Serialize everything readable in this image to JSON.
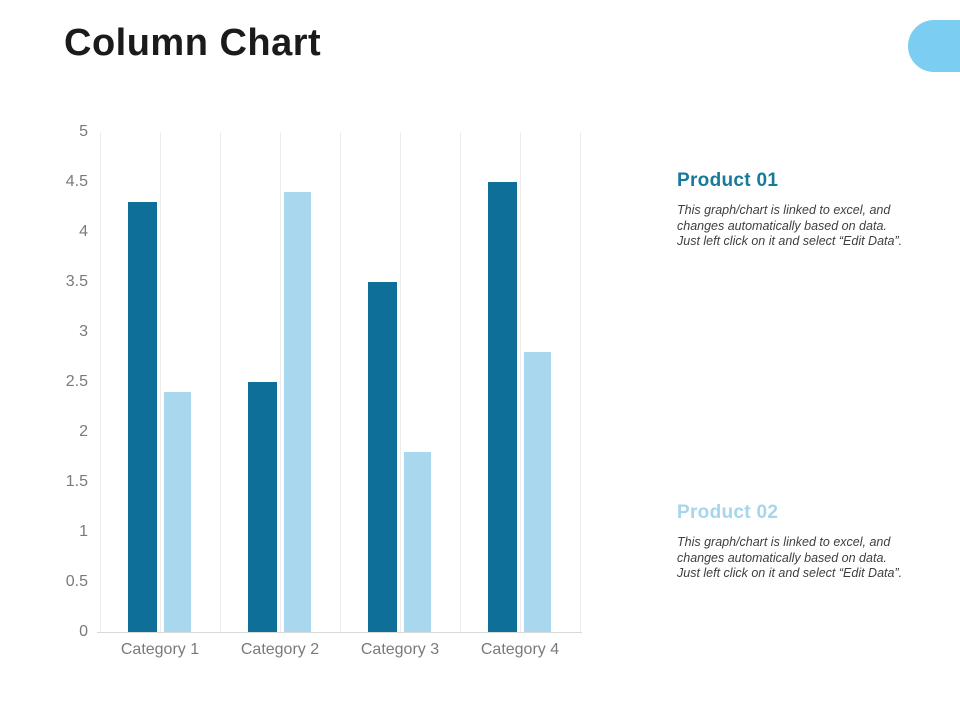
{
  "slide": {
    "title": "Column Chart"
  },
  "decor": {
    "corner_pill_color": "#7BCDF2"
  },
  "chart_data": {
    "type": "bar",
    "title": "",
    "categories": [
      "Category 1",
      "Category 2",
      "Category 3",
      "Category 4"
    ],
    "series": [
      {
        "name": "Product 01",
        "color": "#0E7099",
        "values": [
          4.3,
          2.5,
          3.5,
          4.5
        ]
      },
      {
        "name": "Product 02",
        "color": "#A9D8EE",
        "values": [
          2.4,
          4.4,
          1.8,
          2.8
        ]
      }
    ],
    "ylim": [
      0,
      5
    ],
    "ytick_step": 0.5,
    "ytick_labels": [
      "5",
      "4.5",
      "4",
      "3.5",
      "3",
      "2.5",
      "2",
      "1.5",
      "1",
      "0.5",
      "0"
    ],
    "grid": "vertical",
    "legend": "none",
    "axis_label_color": "#7A7A7A",
    "gridline_color": "#ECECEC"
  },
  "sections": [
    {
      "heading": "Product 01",
      "heading_color": "#177A9B",
      "body_lines": [
        "This graph/chart is linked to excel, and",
        "changes automatically based on data.",
        "Just left click on it and select “Edit Data”."
      ]
    },
    {
      "heading": "Product 02",
      "heading_color": "#A5D6ED",
      "body_lines": [
        "This graph/chart is linked to excel, and",
        "changes automatically based on data.",
        "Just left click on it and select “Edit Data”."
      ]
    }
  ]
}
